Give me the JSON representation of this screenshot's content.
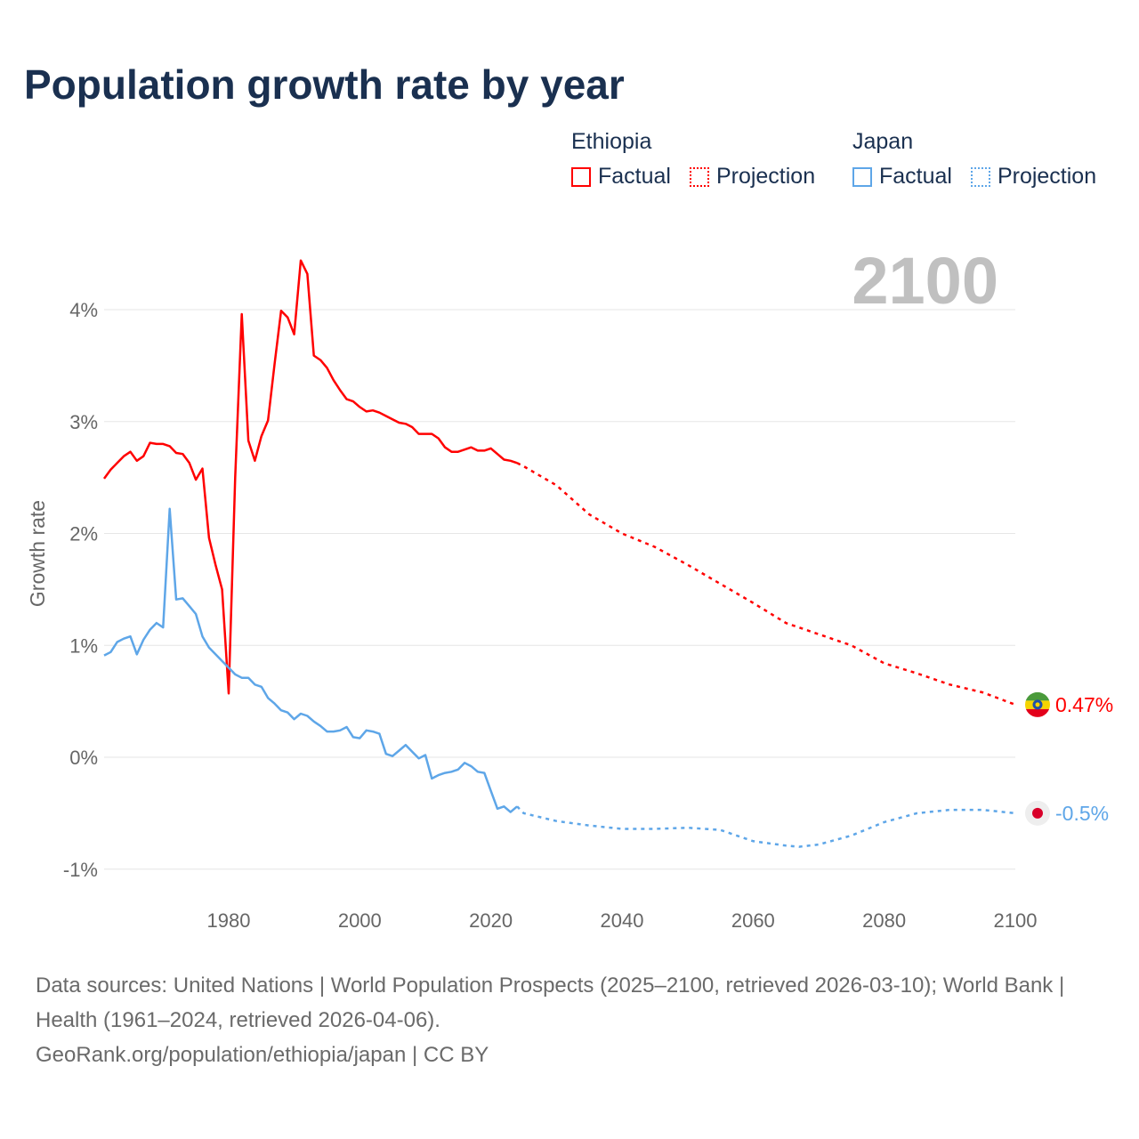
{
  "title": "Population growth rate by year",
  "legend": {
    "groups": [
      {
        "name": "Ethiopia",
        "color": "#ff0000",
        "factual": "Factual",
        "projection": "Projection"
      },
      {
        "name": "Japan",
        "color": "#5ea6e8",
        "factual": "Factual",
        "projection": "Projection"
      }
    ]
  },
  "year_label": "2100",
  "source": {
    "line1": "Data sources: United Nations | World Population Prospects (2025–2100, retrieved 2026-03-10); World Bank | Health (1961–2024, retrieved 2026-04-06).",
    "line2": "GeoRank.org/population/ethiopia/japan | CC BY"
  },
  "chart_data": {
    "type": "line",
    "title": "Population growth rate by year",
    "xlabel": "",
    "ylabel": "Growth rate",
    "xlim": [
      1961,
      2100
    ],
    "ylim": [
      -1.2,
      4.5
    ],
    "xticks": [
      1980,
      2000,
      2020,
      2040,
      2060,
      2080,
      2100
    ],
    "xtick_labels": [
      "1980",
      "2000",
      "2020",
      "2040",
      "2060",
      "2080",
      "2100"
    ],
    "yticks": [
      -1,
      0,
      1,
      2,
      3,
      4
    ],
    "ytick_labels": [
      "-1%",
      "0%",
      "1%",
      "2%",
      "3%",
      "4%"
    ],
    "grid": true,
    "legend_position": "top-right",
    "series": [
      {
        "name": "Ethiopia",
        "color": "#ff0000",
        "end_label": "0.47%",
        "flag": "ethiopia-flag",
        "factual": {
          "x": [
            1961,
            1962,
            1963,
            1964,
            1965,
            1966,
            1967,
            1968,
            1969,
            1970,
            1971,
            1972,
            1973,
            1974,
            1975,
            1976,
            1977,
            1978,
            1979,
            1980,
            1981,
            1982,
            1983,
            1984,
            1985,
            1986,
            1987,
            1988,
            1989,
            1990,
            1991,
            1992,
            1993,
            1994,
            1995,
            1996,
            1997,
            1998,
            1999,
            2000,
            2001,
            2002,
            2003,
            2004,
            2005,
            2006,
            2007,
            2008,
            2009,
            2010,
            2011,
            2012,
            2013,
            2014,
            2015,
            2016,
            2017,
            2018,
            2019,
            2020,
            2021,
            2022,
            2023,
            2024
          ],
          "y": [
            2.49,
            2.57,
            2.63,
            2.69,
            2.73,
            2.65,
            2.69,
            2.81,
            2.8,
            2.8,
            2.78,
            2.72,
            2.71,
            2.63,
            2.48,
            2.58,
            1.96,
            1.72,
            1.5,
            0.57,
            2.5,
            3.96,
            2.83,
            2.65,
            2.87,
            3.01,
            3.51,
            3.99,
            3.93,
            3.78,
            4.44,
            4.32,
            3.59,
            3.55,
            3.48,
            3.37,
            3.28,
            3.2,
            3.18,
            3.13,
            3.09,
            3.1,
            3.08,
            3.05,
            3.02,
            2.99,
            2.98,
            2.95,
            2.89,
            2.89,
            2.89,
            2.85,
            2.77,
            2.73,
            2.73,
            2.75,
            2.77,
            2.74,
            2.74,
            2.76,
            2.71,
            2.66,
            2.65,
            2.63
          ]
        },
        "projection": {
          "x": [
            2024,
            2025,
            2030,
            2035,
            2040,
            2045,
            2050,
            2055,
            2060,
            2065,
            2070,
            2075,
            2080,
            2085,
            2090,
            2095,
            2100
          ],
          "y": [
            2.63,
            2.6,
            2.43,
            2.17,
            2.0,
            1.88,
            1.72,
            1.55,
            1.38,
            1.2,
            1.1,
            1.0,
            0.84,
            0.75,
            0.65,
            0.58,
            0.47
          ]
        }
      },
      {
        "name": "Japan",
        "color": "#5ea6e8",
        "end_label": "-0.5%",
        "flag": "japan-flag",
        "factual": {
          "x": [
            1961,
            1962,
            1963,
            1964,
            1965,
            1966,
            1967,
            1968,
            1969,
            1970,
            1971,
            1972,
            1973,
            1974,
            1975,
            1976,
            1977,
            1978,
            1979,
            1980,
            1981,
            1982,
            1983,
            1984,
            1985,
            1986,
            1987,
            1988,
            1989,
            1990,
            1991,
            1992,
            1993,
            1994,
            1995,
            1996,
            1997,
            1998,
            1999,
            2000,
            2001,
            2002,
            2003,
            2004,
            2005,
            2006,
            2007,
            2008,
            2009,
            2010,
            2011,
            2012,
            2013,
            2014,
            2015,
            2016,
            2017,
            2018,
            2019,
            2020,
            2021,
            2022,
            2023,
            2024
          ],
          "y": [
            0.91,
            0.94,
            1.03,
            1.06,
            1.08,
            0.92,
            1.05,
            1.14,
            1.2,
            1.16,
            2.22,
            1.41,
            1.42,
            1.35,
            1.28,
            1.08,
            0.98,
            0.92,
            0.86,
            0.8,
            0.74,
            0.71,
            0.71,
            0.65,
            0.63,
            0.53,
            0.48,
            0.42,
            0.4,
            0.34,
            0.39,
            0.37,
            0.32,
            0.28,
            0.23,
            0.23,
            0.24,
            0.27,
            0.18,
            0.17,
            0.24,
            0.23,
            0.21,
            0.03,
            0.01,
            0.06,
            0.11,
            0.05,
            -0.01,
            0.02,
            -0.19,
            -0.16,
            -0.14,
            -0.13,
            -0.11,
            -0.05,
            -0.08,
            -0.13,
            -0.14,
            -0.3,
            -0.46,
            -0.44,
            -0.49,
            -0.44
          ]
        },
        "projection": {
          "x": [
            2024,
            2025,
            2030,
            2035,
            2040,
            2045,
            2050,
            2055,
            2060,
            2065,
            2067,
            2070,
            2075,
            2080,
            2085,
            2090,
            2095,
            2100
          ],
          "y": [
            -0.44,
            -0.5,
            -0.57,
            -0.61,
            -0.64,
            -0.64,
            -0.63,
            -0.65,
            -0.75,
            -0.79,
            -0.8,
            -0.78,
            -0.7,
            -0.58,
            -0.5,
            -0.47,
            -0.47,
            -0.5
          ]
        }
      }
    ]
  }
}
